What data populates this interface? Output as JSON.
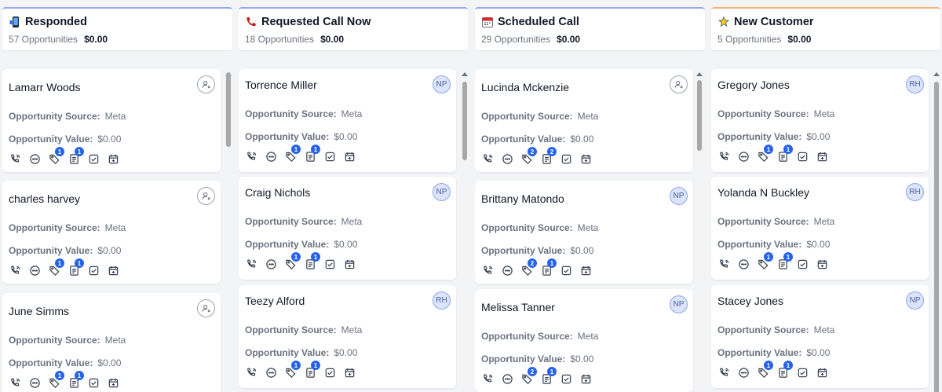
{
  "columns": [
    {
      "title": "Responded",
      "icon": "phone-device-icon",
      "count_text": "57 Opportunities",
      "value_text": "$0.00",
      "cards": [
        {
          "name": "Lamarr Woods",
          "avatar": "",
          "source_label": "Opportunity Source:",
          "source": "Meta",
          "value_label": "Opportunity Value:",
          "value": "$0.00",
          "badges": [
            "1",
            "1"
          ]
        },
        {
          "name": "charles harvey",
          "avatar": "",
          "source_label": "Opportunity Source:",
          "source": "Meta",
          "value_label": "Opportunity Value:",
          "value": "$0.00",
          "badges": [
            "1",
            "1"
          ]
        },
        {
          "name": "June Simms",
          "avatar": "",
          "source_label": "Opportunity Source:",
          "source": "Meta",
          "value_label": "Opportunity Value:",
          "value": "$0.00",
          "badges": [
            "1",
            "1"
          ]
        }
      ]
    },
    {
      "title": "Requested Call Now",
      "icon": "phone-icon",
      "count_text": "18 Opportunities",
      "value_text": "$0.00",
      "cards": [
        {
          "name": "Torrence Miller",
          "avatar": "NP",
          "source_label": "Opportunity Source:",
          "source": "Meta",
          "value_label": "Opportunity Value:",
          "value": "$0.00",
          "badges": [
            "1",
            "1"
          ]
        },
        {
          "name": "Craig Nichols",
          "avatar": "NP",
          "source_label": "Opportunity Source:",
          "source": "Meta",
          "value_label": "Opportunity Value:",
          "value": "$0.00",
          "badges": [
            "1",
            "1"
          ]
        },
        {
          "name": "Teezy Alford",
          "avatar": "RH",
          "source_label": "Opportunity Source:",
          "source": "Meta",
          "value_label": "Opportunity Value:",
          "value": "$0.00",
          "badges": [
            "1",
            "1"
          ]
        }
      ]
    },
    {
      "title": "Scheduled Call",
      "icon": "calendar-icon",
      "count_text": "29 Opportunities",
      "value_text": "$0.00",
      "cards": [
        {
          "name": "Lucinda Mckenzie",
          "avatar": "",
          "source_label": "Opportunity Source:",
          "source": "Meta",
          "value_label": "Opportunity Value:",
          "value": "$0.00",
          "badges": [
            "2",
            "2"
          ]
        },
        {
          "name": "Brittany Matondo",
          "avatar": "NP",
          "source_label": "Opportunity Source:",
          "source": "Meta",
          "value_label": "Opportunity Value:",
          "value": "$0.00",
          "badges": [
            "2",
            "1"
          ]
        },
        {
          "name": "Melissa Tanner",
          "avatar": "NP",
          "source_label": "Opportunity Source:",
          "source": "Meta",
          "value_label": "Opportunity Value:",
          "value": "$0.00",
          "badges": [
            "2",
            "1"
          ]
        }
      ]
    },
    {
      "title": "New Customer",
      "icon": "sparkle-icon",
      "count_text": "5 Opportunities",
      "value_text": "$0.00",
      "cards": [
        {
          "name": "Gregory Jones",
          "avatar": "RH",
          "source_label": "Opportunity Source:",
          "source": "Meta",
          "value_label": "Opportunity Value:",
          "value": "$0.00",
          "badges": [
            "1",
            "1"
          ]
        },
        {
          "name": "Yolanda N Buckley",
          "avatar": "RH",
          "source_label": "Opportunity Source:",
          "source": "Meta",
          "value_label": "Opportunity Value:",
          "value": "$0.00",
          "badges": [
            "1",
            "1"
          ]
        },
        {
          "name": "Stacey Jones",
          "avatar": "NP",
          "source_label": "Opportunity Source:",
          "source": "Meta",
          "value_label": "Opportunity Value:",
          "value": "$0.00",
          "badges": [
            "1",
            "1"
          ]
        }
      ]
    }
  ],
  "actions": [
    "call-icon",
    "chat-icon",
    "tag-icon",
    "notes-icon",
    "task-icon",
    "appointment-icon"
  ],
  "colors": {
    "accent": "#2563eb",
    "header_border_blue": "#93a9f0",
    "header_border_orange": "#f5b27c"
  }
}
